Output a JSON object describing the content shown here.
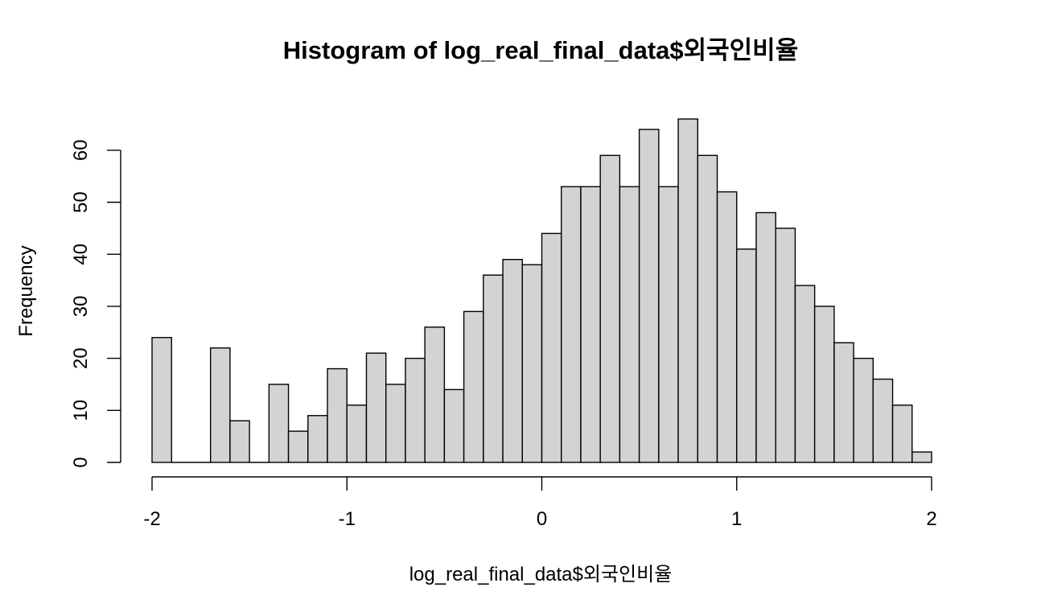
{
  "chart_data": {
    "type": "bar",
    "title": "Histogram of log_real_final_data$외국인비율",
    "xlabel": "log_real_final_data$외국인비율",
    "ylabel": "Frequency",
    "bin_width": 0.1,
    "bins": [
      {
        "start": -2.0,
        "end": -1.9,
        "count": 24
      },
      {
        "start": -1.9,
        "end": -1.8,
        "count": 0
      },
      {
        "start": -1.8,
        "end": -1.7,
        "count": 0
      },
      {
        "start": -1.7,
        "end": -1.6,
        "count": 22
      },
      {
        "start": -1.6,
        "end": -1.5,
        "count": 8
      },
      {
        "start": -1.5,
        "end": -1.4,
        "count": 0
      },
      {
        "start": -1.4,
        "end": -1.3,
        "count": 15
      },
      {
        "start": -1.3,
        "end": -1.2,
        "count": 6
      },
      {
        "start": -1.2,
        "end": -1.1,
        "count": 9
      },
      {
        "start": -1.1,
        "end": -1.0,
        "count": 18
      },
      {
        "start": -1.0,
        "end": -0.9,
        "count": 11
      },
      {
        "start": -0.9,
        "end": -0.8,
        "count": 21
      },
      {
        "start": -0.8,
        "end": -0.7,
        "count": 15
      },
      {
        "start": -0.7,
        "end": -0.6,
        "count": 20
      },
      {
        "start": -0.6,
        "end": -0.5,
        "count": 26
      },
      {
        "start": -0.5,
        "end": -0.4,
        "count": 14
      },
      {
        "start": -0.4,
        "end": -0.3,
        "count": 29
      },
      {
        "start": -0.3,
        "end": -0.2,
        "count": 36
      },
      {
        "start": -0.2,
        "end": -0.1,
        "count": 39
      },
      {
        "start": -0.1,
        "end": 0.0,
        "count": 38
      },
      {
        "start": 0.0,
        "end": 0.1,
        "count": 44
      },
      {
        "start": 0.1,
        "end": 0.2,
        "count": 53
      },
      {
        "start": 0.2,
        "end": 0.3,
        "count": 53
      },
      {
        "start": 0.3,
        "end": 0.4,
        "count": 59
      },
      {
        "start": 0.4,
        "end": 0.5,
        "count": 53
      },
      {
        "start": 0.5,
        "end": 0.6,
        "count": 64
      },
      {
        "start": 0.6,
        "end": 0.7,
        "count": 53
      },
      {
        "start": 0.7,
        "end": 0.8,
        "count": 66
      },
      {
        "start": 0.8,
        "end": 0.9,
        "count": 59
      },
      {
        "start": 0.9,
        "end": 1.0,
        "count": 52
      },
      {
        "start": 1.0,
        "end": 1.1,
        "count": 41
      },
      {
        "start": 1.1,
        "end": 1.2,
        "count": 48
      },
      {
        "start": 1.2,
        "end": 1.3,
        "count": 45
      },
      {
        "start": 1.3,
        "end": 1.4,
        "count": 34
      },
      {
        "start": 1.4,
        "end": 1.5,
        "count": 30
      },
      {
        "start": 1.5,
        "end": 1.6,
        "count": 23
      },
      {
        "start": 1.6,
        "end": 1.7,
        "count": 20
      },
      {
        "start": 1.7,
        "end": 1.8,
        "count": 16
      },
      {
        "start": 1.8,
        "end": 1.9,
        "count": 11
      },
      {
        "start": 1.9,
        "end": 2.0,
        "count": 2
      }
    ],
    "xlim": [
      -2,
      2
    ],
    "ylim": [
      0,
      66
    ],
    "x_ticks": [
      {
        "value": -2,
        "label": "-2"
      },
      {
        "value": -1,
        "label": "-1"
      },
      {
        "value": 0,
        "label": "0"
      },
      {
        "value": 1,
        "label": "1"
      },
      {
        "value": 2,
        "label": "2"
      }
    ],
    "y_ticks": [
      {
        "value": 0,
        "label": "0"
      },
      {
        "value": 10,
        "label": "10"
      },
      {
        "value": 20,
        "label": "20"
      },
      {
        "value": 30,
        "label": "30"
      },
      {
        "value": 40,
        "label": "40"
      },
      {
        "value": 50,
        "label": "50"
      },
      {
        "value": 60,
        "label": "60"
      }
    ],
    "grid": false,
    "bar_fill": "#d3d3d3",
    "bar_stroke": "#000000"
  }
}
